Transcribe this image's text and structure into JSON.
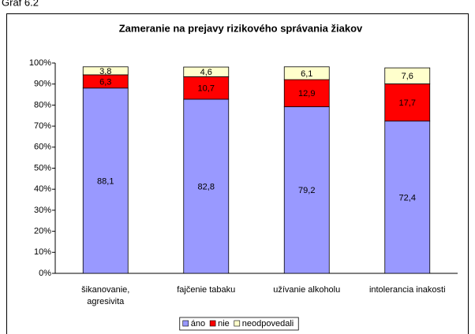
{
  "chart_data": {
    "type": "stacked_bar",
    "caption": "Graf 6.2",
    "title": "Zameranie na prejavy rizikového správania žiakov",
    "categories": [
      "šikanovanie, agresivita",
      "fajčenie tabaku",
      "užívanie alkoholu",
      "intolerancia inakosti"
    ],
    "series": [
      {
        "name": "áno",
        "color": "#9999ff",
        "values": [
          88.1,
          82.8,
          79.2,
          72.4
        ],
        "value_labels": [
          "88,1",
          "82,8",
          "79,2",
          "72,4"
        ]
      },
      {
        "name": "nie",
        "color": "#ff0000",
        "values": [
          6.3,
          10.7,
          12.9,
          17.7
        ],
        "value_labels": [
          "6,3",
          "10,7",
          "12,9",
          "17,7"
        ]
      },
      {
        "name": "neodpovedali",
        "color": "#ffffcc",
        "values": [
          3.8,
          4.6,
          6.1,
          7.6
        ],
        "value_labels": [
          "3,8",
          "4,6",
          "6,1",
          "7,6"
        ]
      }
    ],
    "ylim": [
      0,
      100
    ],
    "yticks": [
      {
        "value": 0,
        "label": "0%"
      },
      {
        "value": 10,
        "label": "10%"
      },
      {
        "value": 20,
        "label": "20%"
      },
      {
        "value": 30,
        "label": "30%"
      },
      {
        "value": 40,
        "label": "40%"
      },
      {
        "value": 50,
        "label": "50%"
      },
      {
        "value": 60,
        "label": "60%"
      },
      {
        "value": 70,
        "label": "70%"
      },
      {
        "value": 80,
        "label": "80%"
      },
      {
        "value": 90,
        "label": "90%"
      },
      {
        "value": 100,
        "label": "100%"
      }
    ],
    "grid": false,
    "legend": "bottom"
  }
}
